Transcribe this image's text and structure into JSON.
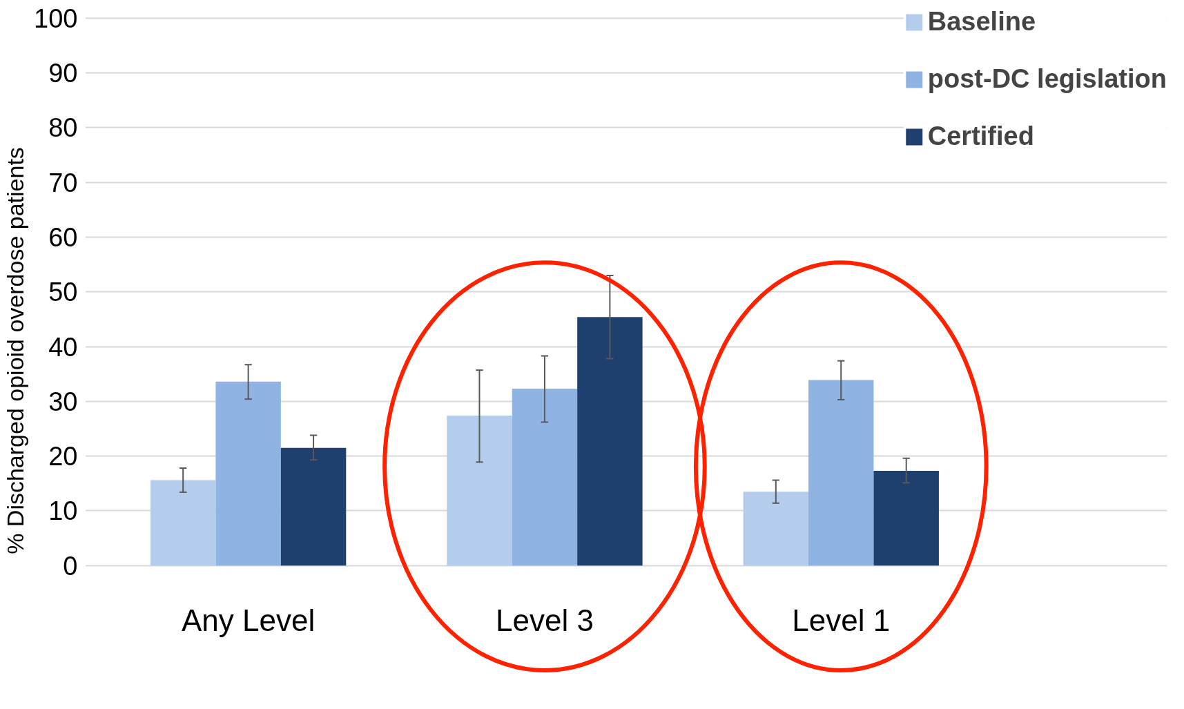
{
  "chart_data": {
    "type": "bar",
    "ylabel": "% Discharged opioid overdose patients",
    "categories": [
      "Any Level",
      "Level 3",
      "Level 1"
    ],
    "series": [
      {
        "name": "Baseline",
        "color": "#b4cdec",
        "values": [
          15.6,
          27.4,
          13.5
        ],
        "errors": [
          [
            13.4,
            17.8
          ],
          [
            18.9,
            35.7
          ],
          [
            11.4,
            15.6
          ]
        ]
      },
      {
        "name": "post-DC legislation",
        "color": "#8fb4e3",
        "values": [
          33.6,
          32.3,
          33.9
        ],
        "errors": [
          [
            30.4,
            36.7
          ],
          [
            26.2,
            38.3
          ],
          [
            30.3,
            37.4
          ]
        ]
      },
      {
        "name": "Certified",
        "color": "#1f3f6e",
        "values": [
          21.5,
          45.4,
          17.3
        ],
        "errors": [
          [
            19.3,
            23.8
          ],
          [
            37.8,
            53.0
          ],
          [
            15.1,
            19.6
          ]
        ]
      }
    ],
    "ylim": [
      0,
      100
    ],
    "yticks": [
      0,
      10,
      20,
      30,
      40,
      50,
      60,
      70,
      80,
      90,
      100
    ],
    "grid": "y",
    "legend": "top right"
  }
}
